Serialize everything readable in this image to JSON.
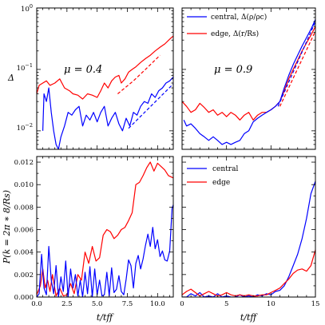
{
  "figure": {
    "panels": {
      "tl": {
        "annotation": "μ = 0.4",
        "ylabel": "Δ",
        "yticks": [
          {
            "id": "y0",
            "label": "10",
            "sup": "−2"
          },
          {
            "id": "y1",
            "label": "10",
            "sup": "−1"
          },
          {
            "id": "y2",
            "label": "10",
            "sup": "0"
          }
        ]
      },
      "tr": {
        "annotation": "μ = 0.9",
        "legend": [
          {
            "id": "l0",
            "label": "central, Δ(ρ/ρc)"
          },
          {
            "id": "l1",
            "label": "edge, Δ(r/Rs)"
          }
        ]
      },
      "bl": {
        "ylabel": "P(k = 2π ∗ 8/Rs)",
        "xlabel": "t/tff",
        "yticks": [
          "0.000",
          "0.002",
          "0.004",
          "0.006",
          "0.008",
          "0.010",
          "0.012"
        ],
        "xticks": [
          "0.0",
          "2.5",
          "5.0",
          "7.5",
          "10.0"
        ]
      },
      "br": {
        "xlabel": "t/tff",
        "xticks": [
          "0",
          "5",
          "10",
          "15"
        ],
        "legend": [
          {
            "id": "l0",
            "label": "central"
          },
          {
            "id": "l1",
            "label": "edge"
          }
        ]
      }
    }
  },
  "chart_data": [
    {
      "id": "tl",
      "type": "line",
      "annotation": "μ = 0.4",
      "xlim": [
        0,
        11.3
      ],
      "ylim": [
        0.005,
        1
      ],
      "yscale": "log",
      "ylabel": "Δ",
      "series": [
        {
          "id": "edge",
          "color": "#ff0000",
          "x": [
            0.0,
            0.2,
            0.5,
            0.8,
            1.1,
            1.5,
            1.9,
            2.3,
            2.7,
            3.0,
            3.4,
            3.8,
            4.2,
            4.6,
            5.0,
            5.3,
            5.6,
            5.9,
            6.2,
            6.5,
            6.8,
            7.0,
            7.3,
            7.6,
            7.9,
            8.2,
            8.6,
            9.0,
            9.4,
            9.8,
            10.2,
            10.6,
            11.0,
            11.3
          ],
          "y": [
            0.04,
            0.055,
            0.06,
            0.065,
            0.055,
            0.06,
            0.07,
            0.05,
            0.045,
            0.04,
            0.038,
            0.033,
            0.04,
            0.038,
            0.035,
            0.045,
            0.06,
            0.05,
            0.065,
            0.075,
            0.08,
            0.06,
            0.07,
            0.09,
            0.1,
            0.11,
            0.13,
            0.15,
            0.17,
            0.2,
            0.23,
            0.26,
            0.31,
            0.35
          ]
        },
        {
          "id": "edge-fit",
          "color": "#ff0000",
          "dashed": true,
          "x": [
            6.7,
            8.0,
            9.0,
            10.2
          ],
          "y": [
            0.04,
            0.065,
            0.1,
            0.17
          ]
        },
        {
          "id": "central",
          "color": "#0000ff",
          "x": [
            0.5,
            0.6,
            0.8,
            1.0,
            1.2,
            1.4,
            1.6,
            1.8,
            2.0,
            2.3,
            2.6,
            2.9,
            3.2,
            3.5,
            3.8,
            4.1,
            4.4,
            4.7,
            5.0,
            5.3,
            5.6,
            5.9,
            6.2,
            6.5,
            6.8,
            7.1,
            7.4,
            7.7,
            8.0,
            8.3,
            8.6,
            8.9,
            9.2,
            9.5,
            9.8,
            10.1,
            10.4,
            10.7,
            11.0,
            11.3
          ],
          "y": [
            0.01,
            0.04,
            0.03,
            0.05,
            0.02,
            0.01,
            0.006,
            0.005,
            0.008,
            0.012,
            0.02,
            0.018,
            0.022,
            0.025,
            0.012,
            0.018,
            0.015,
            0.02,
            0.014,
            0.02,
            0.025,
            0.012,
            0.016,
            0.02,
            0.013,
            0.01,
            0.016,
            0.012,
            0.02,
            0.018,
            0.025,
            0.03,
            0.028,
            0.04,
            0.035,
            0.045,
            0.05,
            0.06,
            0.065,
            0.075
          ]
        },
        {
          "id": "central-fit",
          "color": "#0000ff",
          "dashed": true,
          "x": [
            7.6,
            11.3
          ],
          "y": [
            0.011,
            0.058
          ]
        }
      ]
    },
    {
      "id": "tr",
      "type": "line",
      "annotation": "μ = 0.9",
      "xlim": [
        0,
        15
      ],
      "ylim": [
        0.005,
        1
      ],
      "yscale": "log",
      "legend": [
        "central, Δ(ρ/ρc)",
        "edge, Δ(r/Rs)"
      ],
      "legend_position": "top-right",
      "series": [
        {
          "id": "edge",
          "color": "#ff0000",
          "x": [
            0.0,
            0.5,
            1.0,
            1.5,
            2.0,
            2.5,
            3.0,
            3.5,
            4.0,
            4.5,
            5.0,
            5.5,
            6.0,
            6.5,
            7.0,
            7.5,
            8.0,
            8.5,
            9.0,
            9.5,
            10.0,
            10.5,
            11.0,
            11.5,
            12.0,
            12.5,
            13.0,
            13.5,
            14.0,
            14.5,
            15.0
          ],
          "y": [
            0.03,
            0.025,
            0.02,
            0.022,
            0.028,
            0.024,
            0.02,
            0.022,
            0.018,
            0.02,
            0.017,
            0.02,
            0.018,
            0.015,
            0.018,
            0.02,
            0.015,
            0.018,
            0.02,
            0.02,
            0.022,
            0.025,
            0.03,
            0.045,
            0.07,
            0.1,
            0.14,
            0.2,
            0.27,
            0.36,
            0.5
          ]
        },
        {
          "id": "edge-fit",
          "color": "#ff0000",
          "dashed": true,
          "x": [
            11.0,
            15.0
          ],
          "y": [
            0.025,
            0.42
          ]
        },
        {
          "id": "central",
          "color": "#0000ff",
          "x": [
            0.2,
            0.5,
            1.0,
            1.5,
            2.0,
            2.5,
            3.0,
            3.5,
            4.0,
            4.5,
            5.0,
            5.5,
            6.0,
            6.5,
            7.0,
            7.5,
            8.0,
            8.5,
            9.0,
            9.5,
            10.0,
            10.5,
            11.0,
            11.5,
            12.0,
            12.5,
            13.0,
            13.5,
            14.0,
            14.5,
            15.0
          ],
          "y": [
            0.015,
            0.012,
            0.013,
            0.011,
            0.009,
            0.008,
            0.007,
            0.008,
            0.007,
            0.006,
            0.0065,
            0.006,
            0.0065,
            0.007,
            0.009,
            0.01,
            0.014,
            0.016,
            0.018,
            0.02,
            0.022,
            0.025,
            0.03,
            0.05,
            0.08,
            0.12,
            0.17,
            0.24,
            0.33,
            0.45,
            0.65
          ]
        },
        {
          "id": "central-fit",
          "color": "#0000ff",
          "dashed": true,
          "x": [
            10.8,
            15.0
          ],
          "y": [
            0.025,
            0.6
          ]
        }
      ]
    },
    {
      "id": "bl",
      "type": "line",
      "xlim": [
        0,
        11.3
      ],
      "ylim": [
        0,
        0.0125
      ],
      "xlabel": "t/tff",
      "ylabel": "P(k = 2π ∗ 8/Rs)",
      "series": [
        {
          "id": "edge",
          "color": "#ff0000",
          "x": [
            0.0,
            0.3,
            0.5,
            0.7,
            0.9,
            1.1,
            1.3,
            1.6,
            1.9,
            2.2,
            2.5,
            2.8,
            3.1,
            3.4,
            3.7,
            4.0,
            4.3,
            4.6,
            4.9,
            5.2,
            5.5,
            5.8,
            6.1,
            6.4,
            6.7,
            7.0,
            7.3,
            7.6,
            7.9,
            8.2,
            8.5,
            8.8,
            9.1,
            9.4,
            9.7,
            10.0,
            10.3,
            10.6,
            10.9,
            11.3
          ],
          "y": [
            0.0002,
            0.001,
            0.0025,
            0.0008,
            0.0015,
            0.0005,
            0.002,
            0.0001,
            0.0008,
            0.0001,
            0.0002,
            0.0012,
            0.0003,
            0.002,
            0.0015,
            0.004,
            0.003,
            0.0045,
            0.0032,
            0.0035,
            0.0055,
            0.006,
            0.0058,
            0.0052,
            0.0055,
            0.006,
            0.0062,
            0.0068,
            0.0075,
            0.01,
            0.0102,
            0.0108,
            0.0115,
            0.012,
            0.0112,
            0.0119,
            0.0116,
            0.0113,
            0.0108,
            0.0106
          ]
        },
        {
          "id": "central",
          "color": "#0000ff",
          "x": [
            0.0,
            0.2,
            0.4,
            0.6,
            0.8,
            1.0,
            1.2,
            1.4,
            1.6,
            1.8,
            2.0,
            2.2,
            2.4,
            2.6,
            2.8,
            3.0,
            3.2,
            3.4,
            3.6,
            3.8,
            4.0,
            4.2,
            4.4,
            4.6,
            4.8,
            5.0,
            5.2,
            5.4,
            5.6,
            5.8,
            6.0,
            6.2,
            6.4,
            6.6,
            6.8,
            7.0,
            7.2,
            7.4,
            7.6,
            7.8,
            8.0,
            8.2,
            8.4,
            8.6,
            8.8,
            9.0,
            9.2,
            9.4,
            9.6,
            9.8,
            10.0,
            10.2,
            10.4,
            10.6,
            10.8,
            11.0,
            11.2,
            11.3
          ],
          "y": [
            0.0,
            0.0003,
            0.0038,
            0.0008,
            0.0002,
            0.0045,
            0.0015,
            0.0003,
            0.0028,
            0.0,
            0.0018,
            0.0005,
            0.0032,
            0.0,
            0.0025,
            0.0008,
            0.002,
            0.0001,
            0.0015,
            0.0,
            0.0022,
            0.0003,
            0.0027,
            0.0,
            0.0025,
            0.0002,
            0.0015,
            0.0001,
            0.0002,
            0.0022,
            0.0001,
            0.0026,
            0.0004,
            0.0007,
            0.0019,
            0.0005,
            0.0002,
            0.0016,
            0.0033,
            0.0028,
            0.0008,
            0.003,
            0.0037,
            0.0025,
            0.0034,
            0.0046,
            0.0056,
            0.0045,
            0.0062,
            0.0043,
            0.0051,
            0.0036,
            0.0041,
            0.0033,
            0.0032,
            0.0041,
            0.0079,
            0.0082
          ]
        }
      ]
    },
    {
      "id": "br",
      "type": "line",
      "xlim": [
        0,
        15
      ],
      "ylim": [
        0,
        0.0125
      ],
      "xlabel": "t/tff",
      "legend": [
        "central",
        "edge"
      ],
      "legend_position": "top-left",
      "series": [
        {
          "id": "central",
          "color": "#0000ff",
          "x": [
            0.0,
            0.5,
            1.0,
            1.5,
            2.0,
            2.5,
            3.0,
            3.5,
            4.0,
            4.5,
            5.0,
            5.5,
            6.0,
            6.5,
            7.0,
            7.5,
            8.0,
            8.5,
            9.0,
            9.5,
            10.0,
            10.5,
            11.0,
            11.5,
            12.0,
            12.5,
            13.0,
            13.5,
            14.0,
            14.5,
            15.0
          ],
          "y": [
            0.0,
            0.0,
            0.0003,
            0.0001,
            0.0004,
            0.0,
            0.0001,
            0.0,
            0.0003,
            0.0,
            0.0001,
            0.0,
            0.0,
            0.0002,
            0.0,
            0.0001,
            0.0,
            0.0002,
            0.0001,
            0.0003,
            0.0002,
            0.0005,
            0.0006,
            0.001,
            0.0018,
            0.0028,
            0.0038,
            0.0052,
            0.007,
            0.0092,
            0.0103
          ]
        },
        {
          "id": "edge",
          "color": "#ff0000",
          "x": [
            0.0,
            0.5,
            1.0,
            1.5,
            2.0,
            2.5,
            3.0,
            3.5,
            4.0,
            4.5,
            5.0,
            5.5,
            6.0,
            6.5,
            7.0,
            7.5,
            8.0,
            8.5,
            9.0,
            9.5,
            10.0,
            10.5,
            11.0,
            11.5,
            12.0,
            12.5,
            13.0,
            13.5,
            14.0,
            14.5,
            15.0
          ],
          "y": [
            0.0002,
            0.0005,
            0.0007,
            0.0004,
            0.0001,
            0.0003,
            0.0005,
            0.0003,
            0.0001,
            0.0002,
            0.0004,
            0.0002,
            0.0001,
            0.0002,
            0.0001,
            0.0002,
            0.0001,
            0.0001,
            0.0002,
            0.0002,
            0.0004,
            0.0006,
            0.0008,
            0.0012,
            0.0016,
            0.0021,
            0.0024,
            0.0025,
            0.0023,
            0.0028,
            0.0042
          ]
        }
      ]
    }
  ]
}
